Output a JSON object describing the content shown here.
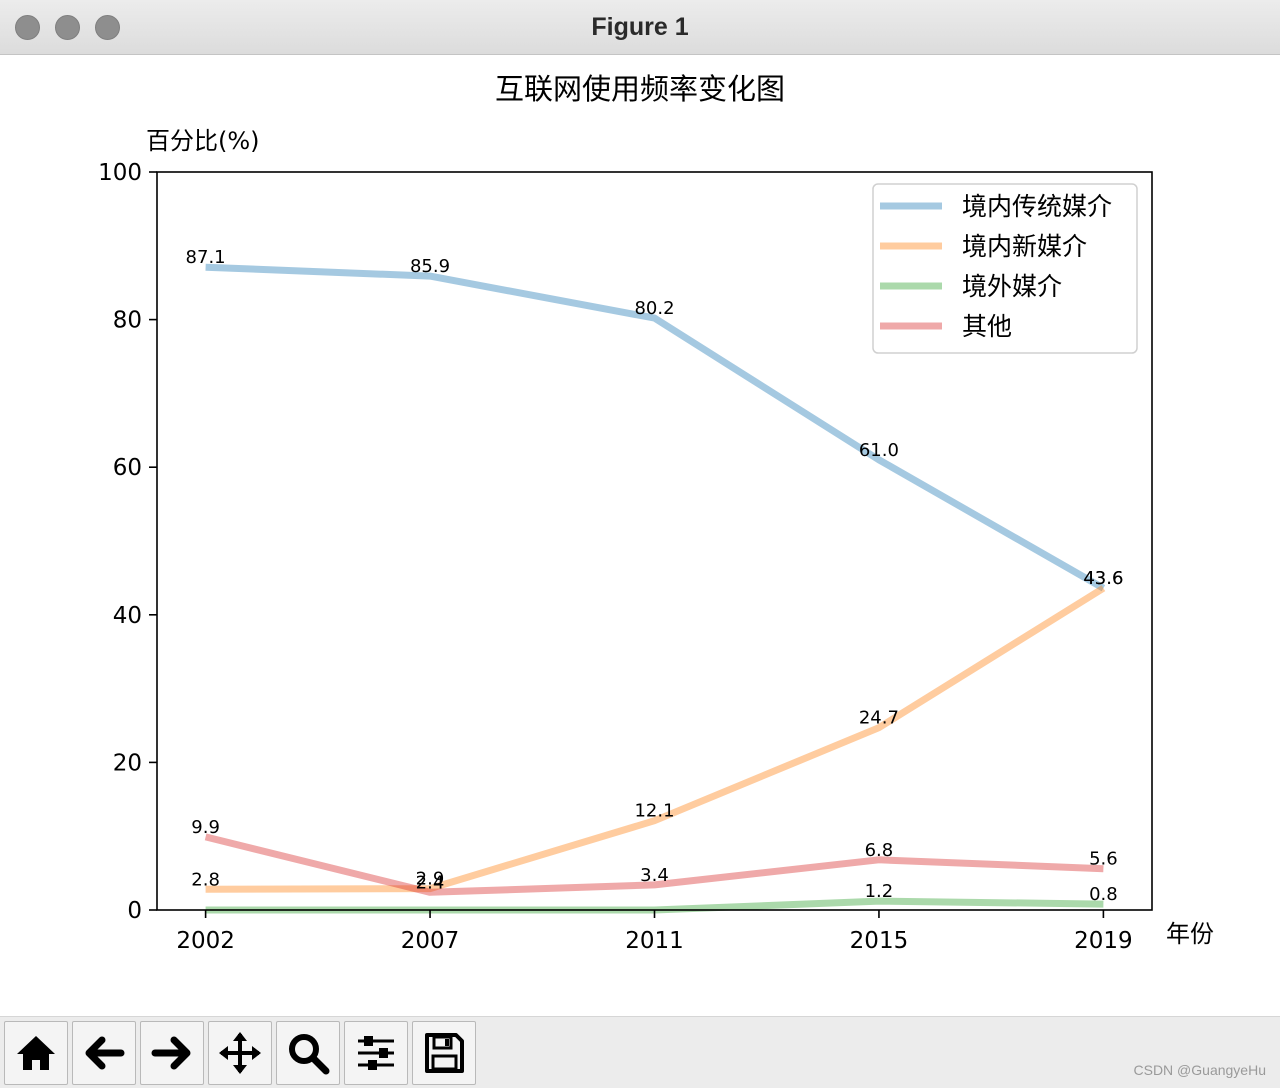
{
  "window": {
    "title": "Figure 1",
    "buttons": [
      "close",
      "minimize",
      "zoom"
    ]
  },
  "toolbar": {
    "tools": [
      {
        "name": "home-button",
        "icon": "home-icon"
      },
      {
        "name": "back-button",
        "icon": "arrow-left-icon"
      },
      {
        "name": "forward-button",
        "icon": "arrow-right-icon"
      },
      {
        "name": "pan-button",
        "icon": "move-icon"
      },
      {
        "name": "zoom-button",
        "icon": "magnifier-icon"
      },
      {
        "name": "configure-subplots-button",
        "icon": "sliders-icon"
      },
      {
        "name": "save-button",
        "icon": "floppy-disk-icon"
      }
    ]
  },
  "watermark": "CSDN @GuangyeHu",
  "chart_data": {
    "type": "line",
    "title": "互联网使用频率变化图",
    "xlabel": "年份",
    "ylabel": "百分比(%)",
    "categories": [
      "2002",
      "2007",
      "2011",
      "2015",
      "2019"
    ],
    "ylim": [
      0,
      100
    ],
    "yticks": [
      "0",
      "20",
      "40",
      "60",
      "80",
      "100"
    ],
    "grid": false,
    "legend_position": "top-right",
    "series": [
      {
        "name": "境内传统媒介",
        "color": "#1f77b4",
        "values": [
          87.1,
          85.9,
          80.2,
          61.0,
          43.6
        ],
        "labels": [
          "87.1",
          "85.9",
          "80.2",
          "61.0",
          "43.6"
        ]
      },
      {
        "name": "境内新媒介",
        "color": "#ff7f0e",
        "values": [
          2.8,
          2.9,
          12.1,
          24.7,
          43.6
        ],
        "labels": [
          "2.8",
          "2.9",
          "12.1",
          "24.7",
          "43.6"
        ]
      },
      {
        "name": "境外媒介",
        "color": "#2ca02c",
        "values": [
          0,
          0,
          0,
          1.2,
          0.8
        ],
        "labels": [
          "",
          "",
          "",
          "1.2",
          "0.8"
        ]
      },
      {
        "name": "其他",
        "color": "#d62728",
        "values": [
          9.9,
          2.4,
          3.4,
          6.8,
          5.6
        ],
        "labels": [
          "9.9",
          "2.4",
          "3.4",
          "6.8",
          "5.6"
        ]
      }
    ]
  }
}
